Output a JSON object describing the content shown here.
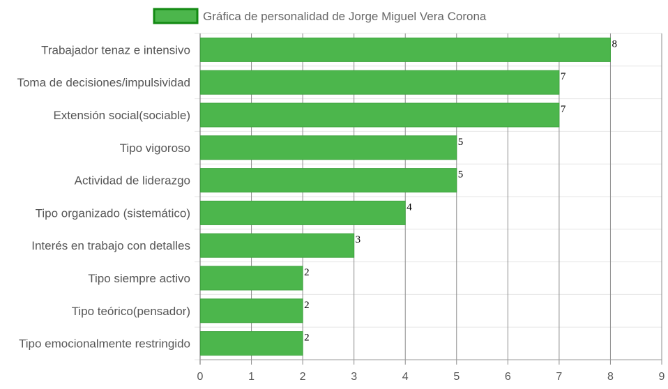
{
  "chart_data": {
    "type": "bar",
    "orientation": "horizontal",
    "title": "",
    "legend": {
      "position": "top",
      "entries": [
        {
          "name": "Gráfica de personalidad de Jorge Miguel Vera Corona",
          "color": "#4cb64c",
          "border_color": "#138a13"
        }
      ]
    },
    "categories": [
      "Trabajador tenaz e intensivo",
      "Toma de decisiones/impulsividad",
      "Extensión social(sociable)",
      "Tipo vigoroso",
      "Actividad de liderazgo",
      "Tipo organizado (sistemático)",
      "Interés en trabajo con detalles",
      "Tipo siempre activo",
      "Tipo teórico(pensador)",
      "Tipo emocionalmente restringido"
    ],
    "series": [
      {
        "name": "Gráfica de personalidad de Jorge Miguel Vera Corona",
        "values": [
          8,
          7,
          7,
          5,
          5,
          4,
          3,
          2,
          2,
          2
        ],
        "color": "#4cb64c"
      }
    ],
    "value_labels": [
      "8",
      "7",
      "7",
      "5",
      "5",
      "4",
      "3",
      "2",
      "2",
      "2"
    ],
    "x_ticks": [
      "0",
      "1",
      "2",
      "3",
      "4",
      "5",
      "6",
      "7",
      "8",
      "9"
    ],
    "xlim": [
      0,
      9
    ],
    "xlabel": "",
    "ylabel": "",
    "grid": true
  }
}
